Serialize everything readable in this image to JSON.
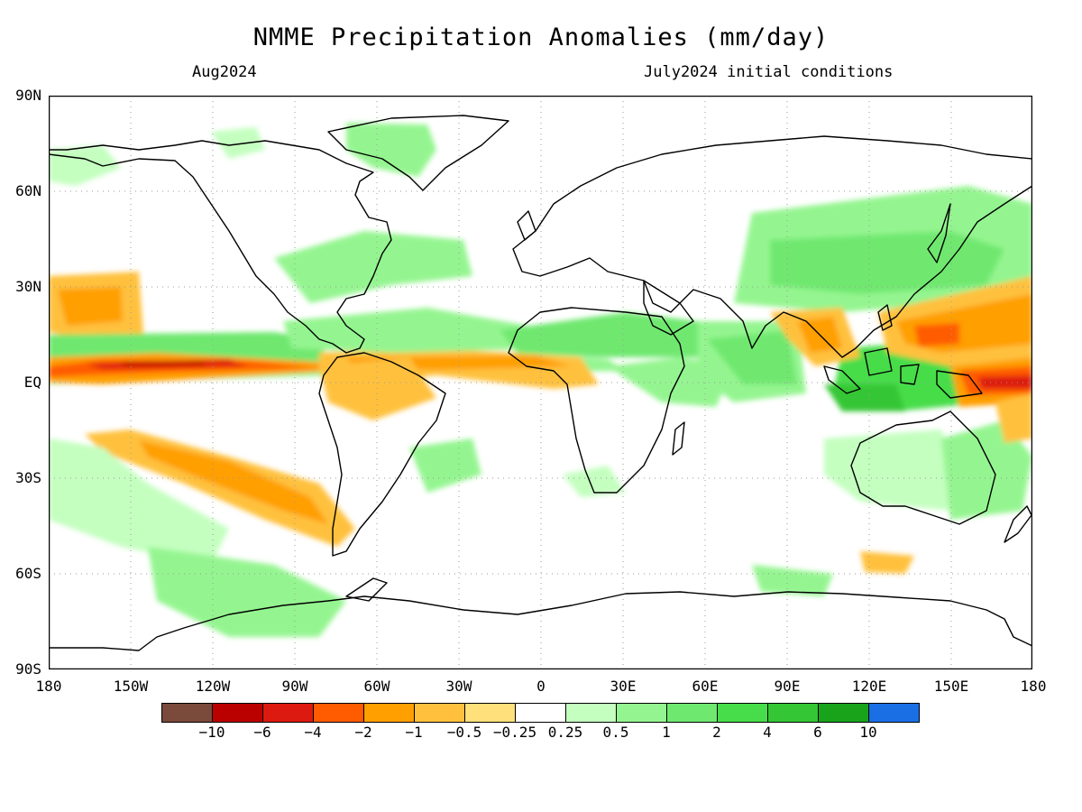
{
  "title": "NMME Precipitation Anomalies (mm/day)",
  "subtitle_left": "Aug2024",
  "subtitle_right": "July2024 initial conditions",
  "lat_labels": [
    "90N",
    "60N",
    "30N",
    "EQ",
    "30S",
    "60S",
    "90S"
  ],
  "lon_labels": [
    "180",
    "150W",
    "120W",
    "90W",
    "60W",
    "30W",
    "0",
    "30E",
    "60E",
    "90E",
    "120E",
    "150E",
    "180"
  ],
  "legend": {
    "colors": [
      "#7a4a3a",
      "#bb0000",
      "#dd1a0f",
      "#ff5b00",
      "#ff9f00",
      "#ffc13d",
      "#ffe07a",
      "#ffffff",
      "#c4ffc0",
      "#94f590",
      "#6fe870",
      "#47dd4a",
      "#34c635",
      "#18a31b",
      "#1a6fe5"
    ],
    "labels": [
      "−10",
      "−6",
      "−4",
      "−2",
      "−1",
      "−0.5",
      "−0.25",
      "0.25",
      "0.5",
      "1",
      "2",
      "4",
      "6",
      "10"
    ]
  }
}
